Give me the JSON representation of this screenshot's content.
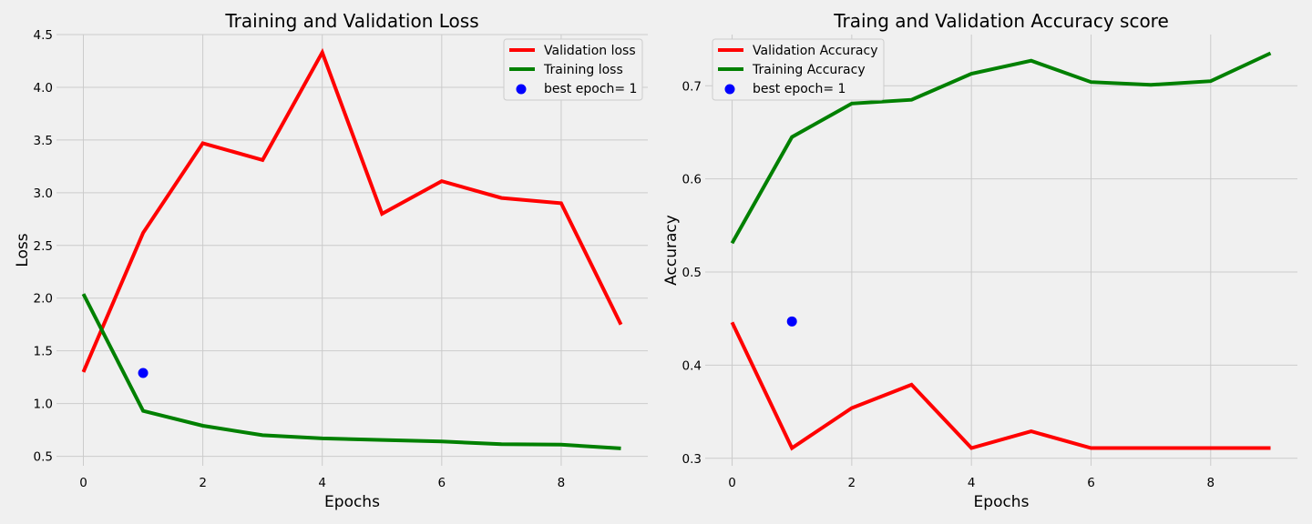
{
  "chart_data": [
    {
      "type": "line",
      "title": "Training and Validation Loss",
      "xlabel": "Epochs",
      "ylabel": "Loss",
      "xlim": [
        -0.45,
        9.45
      ],
      "ylim": [
        0.41,
        4.5
      ],
      "xticks": [
        0,
        2,
        4,
        6,
        8
      ],
      "yticks": [
        0.5,
        1.0,
        1.5,
        2.0,
        2.5,
        3.0,
        3.5,
        4.0,
        4.5
      ],
      "ytick_labels": [
        "0.5",
        "1.0",
        "1.5",
        "2.0",
        "2.5",
        "3.0",
        "3.5",
        "4.0",
        "4.5"
      ],
      "grid": true,
      "legend_position": "top-right",
      "x": [
        0,
        1,
        2,
        3,
        4,
        5,
        6,
        7,
        8,
        9
      ],
      "series": [
        {
          "name": "Validation loss",
          "color": "#ff0000",
          "values": [
            1.3,
            2.62,
            3.47,
            3.31,
            4.33,
            2.8,
            3.11,
            2.95,
            2.9,
            1.75
          ]
        },
        {
          "name": "Training loss",
          "color": "#008000",
          "values": [
            2.04,
            0.93,
            0.79,
            0.7,
            0.67,
            0.655,
            0.64,
            0.615,
            0.61,
            0.575
          ]
        }
      ],
      "best_point": {
        "name": "best epoch= 1",
        "color": "#0000ff",
        "x": 1,
        "y": 1.29
      }
    },
    {
      "type": "line",
      "title": "Traing and Validation  Accuracy score",
      "xlabel": "Epochs",
      "ylabel": "Accuracy",
      "xlim": [
        -0.45,
        9.45
      ],
      "ylim": [
        0.292,
        0.755
      ],
      "xticks": [
        0,
        2,
        4,
        6,
        8
      ],
      "yticks": [
        0.3,
        0.4,
        0.5,
        0.6,
        0.7
      ],
      "ytick_labels": [
        "0.3",
        "0.4",
        "0.5",
        "0.6",
        "0.7"
      ],
      "grid": true,
      "legend_position": "top-left",
      "x": [
        0,
        1,
        2,
        2.5,
        3,
        4,
        5,
        6,
        7,
        8,
        9
      ],
      "series": [
        {
          "name": "Validation Accuracy",
          "color": "#ff0000",
          "x": [
            0,
            1,
            2,
            3,
            4,
            5,
            6,
            7,
            8,
            9
          ],
          "values": [
            0.446,
            0.311,
            0.354,
            0.379,
            0.311,
            0.329,
            0.311,
            0.311,
            0.311,
            0.311
          ]
        },
        {
          "name": "Training Accuracy",
          "color": "#008000",
          "x": [
            0,
            1,
            2,
            3,
            4,
            5,
            6,
            7,
            8,
            9
          ],
          "values": [
            0.531,
            0.645,
            0.681,
            0.685,
            0.713,
            0.727,
            0.704,
            0.701,
            0.705,
            0.735
          ]
        }
      ],
      "best_point": {
        "name": "best epoch= 1",
        "color": "#0000ff",
        "x": 1,
        "y": 0.447
      }
    }
  ]
}
